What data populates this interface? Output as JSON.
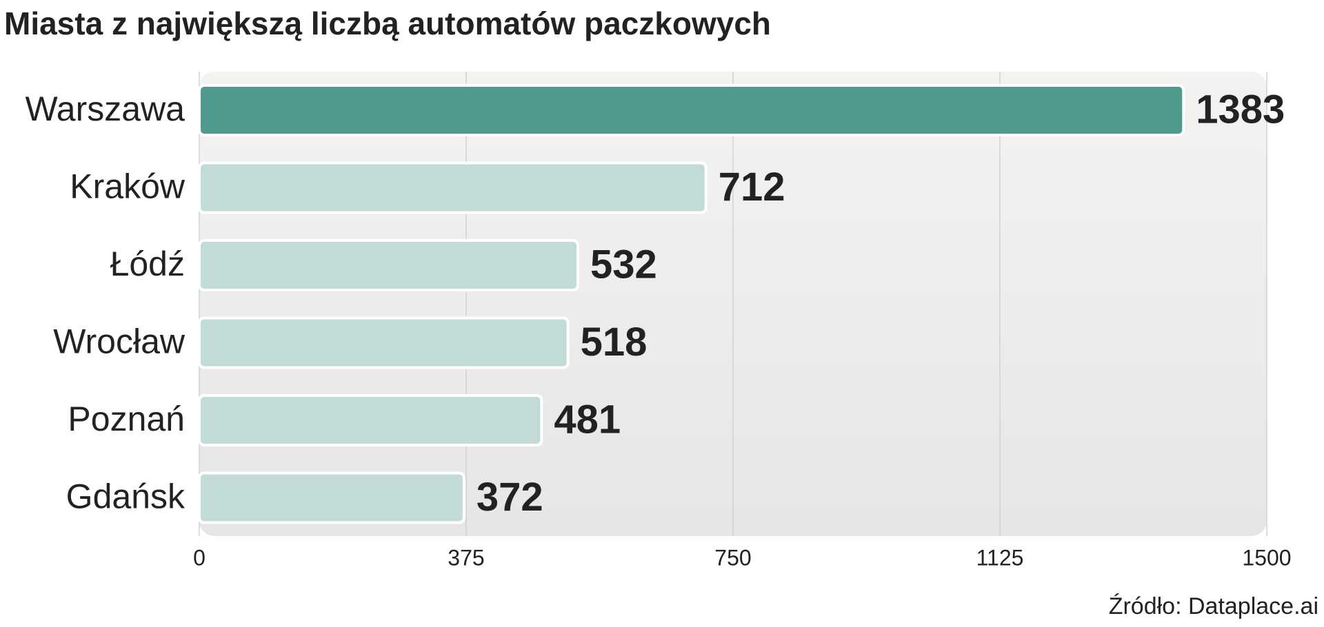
{
  "chart_data": {
    "type": "hbar",
    "title": "Miasta z największą liczbą automatów paczkowych",
    "categories": [
      "Warszawa",
      "Kraków",
      "Łódź",
      "Wrocław",
      "Poznań",
      "Gdańsk"
    ],
    "values": [
      1383,
      712,
      532,
      518,
      481,
      372
    ],
    "colors": [
      "#4f9a8f",
      "#c2dbd6",
      "#c2dbd6",
      "#c2dbd6",
      "#c2dbd6",
      "#c2dbd6"
    ],
    "xlim": [
      0,
      1500
    ],
    "xticks": [
      0,
      375,
      750,
      1125,
      1500
    ],
    "grid": true,
    "source": "Źródło: Dataplace.ai"
  }
}
